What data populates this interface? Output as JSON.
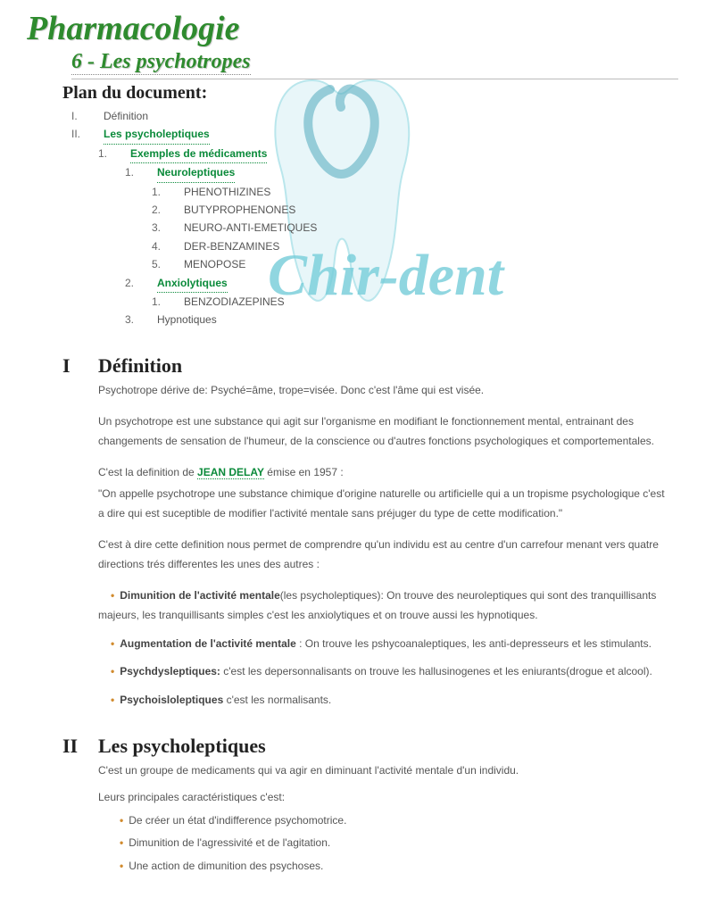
{
  "header": {
    "title": "Pharmacologie",
    "subtitle": "6 - Les psychotropes",
    "plan_label": "Plan du document:"
  },
  "watermark": {
    "text": "Chir-dent",
    "tooth_fill": "#3bb8c9",
    "tooth_shadow": "#1a8fa8",
    "text_color": "#3bb8c9"
  },
  "toc": [
    {
      "num": "I.",
      "label": "Définition",
      "link": false,
      "indent": 0
    },
    {
      "num": "II.",
      "label": "Les psycholeptiques",
      "link": true,
      "indent": 0
    },
    {
      "num": "1.",
      "label": "Exemples de médicaments",
      "link": true,
      "indent": 1
    },
    {
      "num": "1.",
      "label": "Neuroleptiques",
      "link": true,
      "indent": 2
    },
    {
      "num": "1.",
      "label": "PHENOTHIZINES",
      "link": false,
      "indent": 3
    },
    {
      "num": "2.",
      "label": "BUTYPROPHENONES",
      "link": false,
      "indent": 3
    },
    {
      "num": "3.",
      "label": "NEURO-ANTI-EMETIQUES",
      "link": false,
      "indent": 3
    },
    {
      "num": "4.",
      "label": "DER-BENZAMINES",
      "link": false,
      "indent": 3
    },
    {
      "num": "5.",
      "label": "MENOPOSE",
      "link": false,
      "indent": 3
    },
    {
      "num": "2.",
      "label": "Anxiolytiques",
      "link": true,
      "indent": 2
    },
    {
      "num": "1.",
      "label": "BENZODIAZEPINES",
      "link": false,
      "indent": 3
    },
    {
      "num": "3.",
      "label": "Hypnotiques",
      "link": false,
      "indent": 2
    }
  ],
  "sections": {
    "s1": {
      "roman": "I",
      "title": "Définition",
      "p1": "Psychotrope dérive de: Psyché=âme, trope=visée. Donc c'est l'âme qui est visée.",
      "p2": "Un psychotrope est une substance qui agit sur l'organisme en modifiant le fonctionnement mental, entrainant des changements de sensation de l'humeur, de la conscience ou d'autres fonctions psychologiques et comportementales.",
      "p3a": "C'est la definition de ",
      "p3_link": "JEAN DELAY",
      "p3b": " émise en 1957 :",
      "p4": "\"On appelle psychotrope une substance chimique d'origine naturelle ou artificielle qui a un tropisme psychologique c'est a dire qui est suceptible de modifier l'activité mentale sans préjuger du type de cette modification.\"",
      "p5": "C'est à dire cette definition nous permet de comprendre qu'un individu est au centre d'un carrefour menant vers quatre directions trés differentes les unes des autres :",
      "bullets": [
        {
          "lead": "Dimunition de l'activité mentale",
          "rest": "(les psycholeptiques): On trouve des neuroleptiques qui sont des tranquillisants majeurs, les tranquillisants simples c'est les anxiolytiques et on trouve aussi les hypnotiques."
        },
        {
          "lead": "Augmentation de l'activité mentale",
          "rest": " : On trouve les pshycoanaleptiques, les anti-depresseurs et les stimulants."
        },
        {
          "lead": "Psychdysleptiques:",
          "rest": " c'est les depersonnalisants on trouve les hallusinogenes et les eniurants(drogue et alcool)."
        },
        {
          "lead": "Psychoisloleptiques",
          "rest": " c'est les normalisants."
        }
      ]
    },
    "s2": {
      "roman": "II",
      "title": "Les psycholeptiques",
      "p1": "C'est un groupe de medicaments qui va agir en diminuant l'activité mentale d'un individu.",
      "p2": "Leurs principales caractéristiques c'est:",
      "list": [
        "De créer un état d'indifference psychomotrice.",
        "Dimunition de l'agressivité et de l'agitation.",
        "Une action de dimunition des psychoses."
      ]
    }
  },
  "colors": {
    "title_green": "#2e8b2e",
    "link_green": "#0a8a3a",
    "bullet_orange": "#d18b2e",
    "text_gray": "#555555"
  }
}
